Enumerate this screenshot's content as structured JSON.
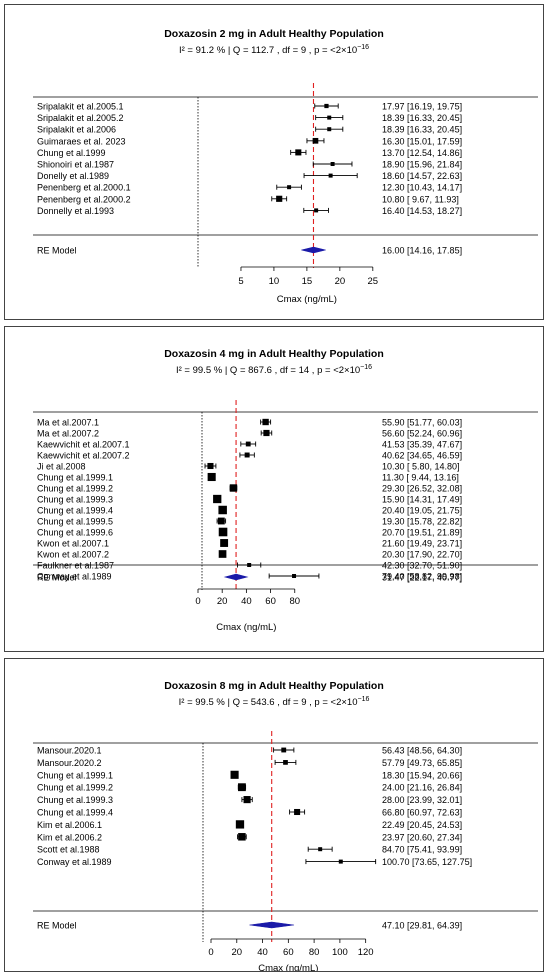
{
  "colors": {
    "ref_line": "#e02020",
    "diamond": "#1a1aa8",
    "marker": "#000000"
  },
  "chart_data": [
    {
      "type": "forest",
      "title": "Doxazosin 2 mg in Adult Healthy Population",
      "stats_text": "I² = 91.2 %  | Q = 112.7 , df = 9 , p = <2×10",
      "stats_exp": "−16",
      "xlabel": "Cmax (ng/mL)",
      "xlim": [
        0,
        27
      ],
      "ticks": [
        5,
        10,
        15,
        20,
        25
      ],
      "tick_labels": [
        "5",
        "10",
        "15",
        "20",
        "25"
      ],
      "ref_line": 16.0,
      "studies": [
        {
          "label": "Sripalakit et al.2005.1",
          "est": 17.97,
          "lo": 16.19,
          "hi": 19.75,
          "text": "17.97 [16.19, 19.75]"
        },
        {
          "label": "Sripalakit et al.2005.2",
          "est": 18.39,
          "lo": 16.33,
          "hi": 20.45,
          "text": "18.39 [16.33, 20.45]"
        },
        {
          "label": "Sripalakit et al.2006",
          "est": 18.39,
          "lo": 16.33,
          "hi": 20.45,
          "text": "18.39 [16.33, 20.45]"
        },
        {
          "label": "Guimaraes et al. 2023",
          "est": 16.3,
          "lo": 15.01,
          "hi": 17.59,
          "text": "16.30 [15.01, 17.59]"
        },
        {
          "label": "Chung et al.1999",
          "est": 13.7,
          "lo": 12.54,
          "hi": 14.86,
          "text": "13.70 [12.54, 14.86]"
        },
        {
          "label": "Shionoiri et al.1987",
          "est": 18.9,
          "lo": 15.96,
          "hi": 21.84,
          "text": "18.90 [15.96, 21.84]"
        },
        {
          "label": "Donelly et al.1989",
          "est": 18.6,
          "lo": 14.57,
          "hi": 22.63,
          "text": "18.60 [14.57, 22.63]"
        },
        {
          "label": "Penenberg et al.2000.1",
          "est": 12.3,
          "lo": 10.43,
          "hi": 14.17,
          "text": "12.30 [10.43, 14.17]"
        },
        {
          "label": "Penenberg et al.2000.2",
          "est": 10.8,
          "lo": 9.67,
          "hi": 11.93,
          "text": "10.80 [ 9.67, 11.93]"
        },
        {
          "label": "Donnelly et al.1993",
          "est": 16.4,
          "lo": 14.53,
          "hi": 18.27,
          "text": "16.40 [14.53, 18.27]"
        }
      ],
      "model": {
        "label": "RE Model",
        "est": 16.0,
        "lo": 14.16,
        "hi": 17.85,
        "text": "16.00 [14.16, 17.85]"
      }
    },
    {
      "type": "forest",
      "title": "Doxazosin 4 mg in Adult Healthy Population",
      "stats_text": "I² = 99.5 %  | Q = 867.6 , df = 14 , p = <2×10",
      "stats_exp": "−16",
      "xlabel": "Cmax (ng/mL)",
      "xlim": [
        0,
        105
      ],
      "ticks": [
        0,
        20,
        40,
        60,
        80
      ],
      "tick_labels": [
        "0",
        "20",
        "40",
        "60",
        "80"
      ],
      "ref_line": 31.47,
      "studies": [
        {
          "label": "Ma et al.2007.1",
          "est": 55.9,
          "lo": 51.77,
          "hi": 60.03,
          "text": "55.90 [51.77, 60.03]"
        },
        {
          "label": "Ma et al.2007.2",
          "est": 56.6,
          "lo": 52.24,
          "hi": 60.96,
          "text": "56.60 [52.24, 60.96]"
        },
        {
          "label": "Kaewvichit et al.2007.1",
          "est": 41.53,
          "lo": 35.39,
          "hi": 47.67,
          "text": "41.53 [35.39, 47.67]"
        },
        {
          "label": "Kaewvichit et al.2007.2",
          "est": 40.62,
          "lo": 34.65,
          "hi": 46.59,
          "text": "40.62 [34.65, 46.59]"
        },
        {
          "label": "Ji et al.2008",
          "est": 10.3,
          "lo": 5.8,
          "hi": 14.8,
          "text": "10.30 [ 5.80, 14.80]"
        },
        {
          "label": "Chung et al.1999.1",
          "est": 11.3,
          "lo": 9.44,
          "hi": 13.16,
          "text": "11.30 [ 9.44, 13.16]"
        },
        {
          "label": "Chung et al.1999.2",
          "est": 29.3,
          "lo": 26.52,
          "hi": 32.08,
          "text": "29.30 [26.52, 32.08]"
        },
        {
          "label": "Chung et al.1999.3",
          "est": 15.9,
          "lo": 14.31,
          "hi": 17.49,
          "text": "15.90 [14.31, 17.49]"
        },
        {
          "label": "Chung et al.1999.4",
          "est": 20.4,
          "lo": 19.05,
          "hi": 21.75,
          "text": "20.40 [19.05, 21.75]"
        },
        {
          "label": "Chung et al.1999.5",
          "est": 19.3,
          "lo": 15.78,
          "hi": 22.82,
          "text": "19.30 [15.78, 22.82]"
        },
        {
          "label": "Chung et al.1999.6",
          "est": 20.7,
          "lo": 19.51,
          "hi": 21.89,
          "text": "20.70 [19.51, 21.89]"
        },
        {
          "label": "Kwon et al.2007.1",
          "est": 21.6,
          "lo": 19.49,
          "hi": 23.71,
          "text": "21.60 [19.49, 23.71]"
        },
        {
          "label": "Kwon et al.2007.2",
          "est": 20.3,
          "lo": 17.9,
          "hi": 22.7,
          "text": "20.30 [17.90, 22.70]"
        },
        {
          "label": "Faulkner et al.1987",
          "est": 42.3,
          "lo": 32.7,
          "hi": 51.9,
          "text": "42.30 [32.70, 51.90]"
        },
        {
          "label": "Conway et al.1989",
          "est": 79.4,
          "lo": 58.82,
          "hi": 99.98,
          "text": "79.40 [58.82, 99.98]"
        }
      ],
      "model": {
        "label": "RE Model",
        "est": 31.47,
        "lo": 22.17,
        "hi": 40.77,
        "text": "31.47 [22.17, 40.77]"
      }
    },
    {
      "type": "forest",
      "title": "Doxazosin 8 mg in Adult Healthy Population",
      "stats_text": "I² = 99.5 %  | Q = 543.6 , df = 9 , p = <2×10",
      "stats_exp": "−16",
      "xlabel": "Cmax (ng/mL)",
      "xlim": [
        0,
        135
      ],
      "ticks": [
        0,
        20,
        40,
        60,
        80,
        100,
        120
      ],
      "tick_labels": [
        "0",
        "20",
        "40",
        "60",
        "80",
        "100",
        "120"
      ],
      "ref_line": 47.1,
      "studies": [
        {
          "label": "Mansour.2020.1",
          "est": 56.43,
          "lo": 48.56,
          "hi": 64.3,
          "text": "56.43 [48.56, 64.30]"
        },
        {
          "label": "Mansour.2020.2",
          "est": 57.79,
          "lo": 49.73,
          "hi": 65.85,
          "text": "57.79 [49.73, 65.85]"
        },
        {
          "label": "Chung et al.1999.1",
          "est": 18.3,
          "lo": 15.94,
          "hi": 20.66,
          "text": "18.30 [15.94, 20.66]"
        },
        {
          "label": "Chung et al.1999.2",
          "est": 24.0,
          "lo": 21.16,
          "hi": 26.84,
          "text": "24.00 [21.16, 26.84]"
        },
        {
          "label": "Chung et al.1999.3",
          "est": 28.0,
          "lo": 23.99,
          "hi": 32.01,
          "text": "28.00 [23.99, 32.01]"
        },
        {
          "label": "Chung et al.1999.4",
          "est": 66.8,
          "lo": 60.97,
          "hi": 72.63,
          "text": "66.80 [60.97, 72.63]"
        },
        {
          "label": "Kim et al.2006.1",
          "est": 22.49,
          "lo": 20.45,
          "hi": 24.53,
          "text": "22.49 [20.45, 24.53]"
        },
        {
          "label": "Kim et al.2006.2",
          "est": 23.97,
          "lo": 20.6,
          "hi": 27.34,
          "text": "23.97 [20.60, 27.34]"
        },
        {
          "label": "Scott et al.1988",
          "est": 84.7,
          "lo": 75.41,
          "hi": 93.99,
          "text": "84.70 [75.41, 93.99]"
        },
        {
          "label": "Conway et al.1989",
          "est": 100.7,
          "lo": 73.65,
          "hi": 127.75,
          "text": "100.70 [73.65, 127.75]"
        }
      ],
      "model": {
        "label": "RE Model",
        "est": 47.1,
        "lo": 29.81,
        "hi": 64.39,
        "text": "47.10 [29.81, 64.39]"
      }
    }
  ]
}
